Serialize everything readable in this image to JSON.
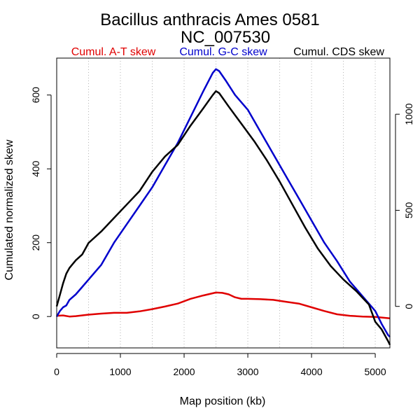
{
  "chart_data": {
    "type": "line",
    "title": "Bacillus anthracis Ames 0581",
    "subtitle": "NC_007530",
    "xlabel": "Map position (kb)",
    "ylabel": "Cumulated normalized skew",
    "xlim": [
      0,
      5230
    ],
    "ylim": [
      -85,
      700
    ],
    "y2lim": [
      -216,
      1292
    ],
    "x_ticks": [
      "0",
      "1000",
      "2000",
      "3000",
      "4000",
      "5000"
    ],
    "y_ticks": [
      "0",
      "200",
      "400",
      "600"
    ],
    "y2_ticks": [
      "0",
      "500",
      "1000"
    ],
    "x_tick_values": [
      0,
      1000,
      2000,
      3000,
      4000,
      5000
    ],
    "y_tick_values": [
      0,
      200,
      400,
      600
    ],
    "y2_tick_values": [
      0,
      500,
      1000
    ],
    "x_grid_values": [
      0,
      500,
      1000,
      1500,
      2000,
      2500,
      3000,
      3500,
      4000,
      4500,
      5000
    ],
    "grid": "vertical dotted",
    "legend_position": "top",
    "series": [
      {
        "name": "Cumul. A-T skew",
        "color": "#e00000",
        "axis": "left",
        "x": [
          0,
          100,
          200,
          300,
          500,
          700,
          900,
          1100,
          1300,
          1500,
          1700,
          1900,
          2100,
          2300,
          2500,
          2600,
          2700,
          2800,
          2900,
          3000,
          3200,
          3400,
          3600,
          3800,
          4000,
          4200,
          4400,
          4600,
          4800,
          5000,
          5230
        ],
        "y": [
          2,
          3,
          0,
          1,
          5,
          8,
          10,
          10,
          14,
          20,
          27,
          35,
          48,
          57,
          65,
          64,
          60,
          52,
          48,
          48,
          47,
          45,
          40,
          35,
          25,
          15,
          6,
          2,
          0,
          -1,
          -5
        ]
      },
      {
        "name": "Cumul. G-C skew",
        "color": "#0000cc",
        "axis": "left",
        "x": [
          0,
          50,
          100,
          150,
          200,
          300,
          400,
          500,
          700,
          900,
          1100,
          1300,
          1500,
          1700,
          1900,
          2100,
          2300,
          2450,
          2500,
          2550,
          2650,
          2800,
          3000,
          3200,
          3400,
          3600,
          3800,
          4000,
          4200,
          4400,
          4600,
          4800,
          5000,
          5100,
          5200,
          5230
        ],
        "y": [
          0,
          15,
          25,
          30,
          45,
          60,
          80,
          100,
          140,
          200,
          250,
          300,
          350,
          410,
          470,
          540,
          610,
          660,
          670,
          665,
          640,
          600,
          560,
          500,
          440,
          380,
          320,
          260,
          200,
          150,
          95,
          55,
          15,
          -20,
          -50,
          -55
        ]
      },
      {
        "name": "Cumul. CDS skew",
        "color": "#000000",
        "axis": "right",
        "x": [
          0,
          50,
          100,
          150,
          200,
          300,
          400,
          500,
          700,
          900,
          1100,
          1300,
          1500,
          1700,
          1900,
          2100,
          2300,
          2450,
          2500,
          2550,
          2700,
          2900,
          3100,
          3300,
          3500,
          3700,
          3900,
          4100,
          4300,
          4500,
          4700,
          4900,
          5000,
          5100,
          5200,
          5230
        ],
        "y": [
          0,
          60,
          120,
          170,
          200,
          240,
          270,
          330,
          390,
          460,
          530,
          600,
          700,
          780,
          840,
          940,
          1030,
          1100,
          1120,
          1110,
          1040,
          950,
          860,
          760,
          650,
          530,
          410,
          300,
          210,
          140,
          80,
          10,
          -80,
          -120,
          -180,
          -200
        ]
      }
    ]
  }
}
